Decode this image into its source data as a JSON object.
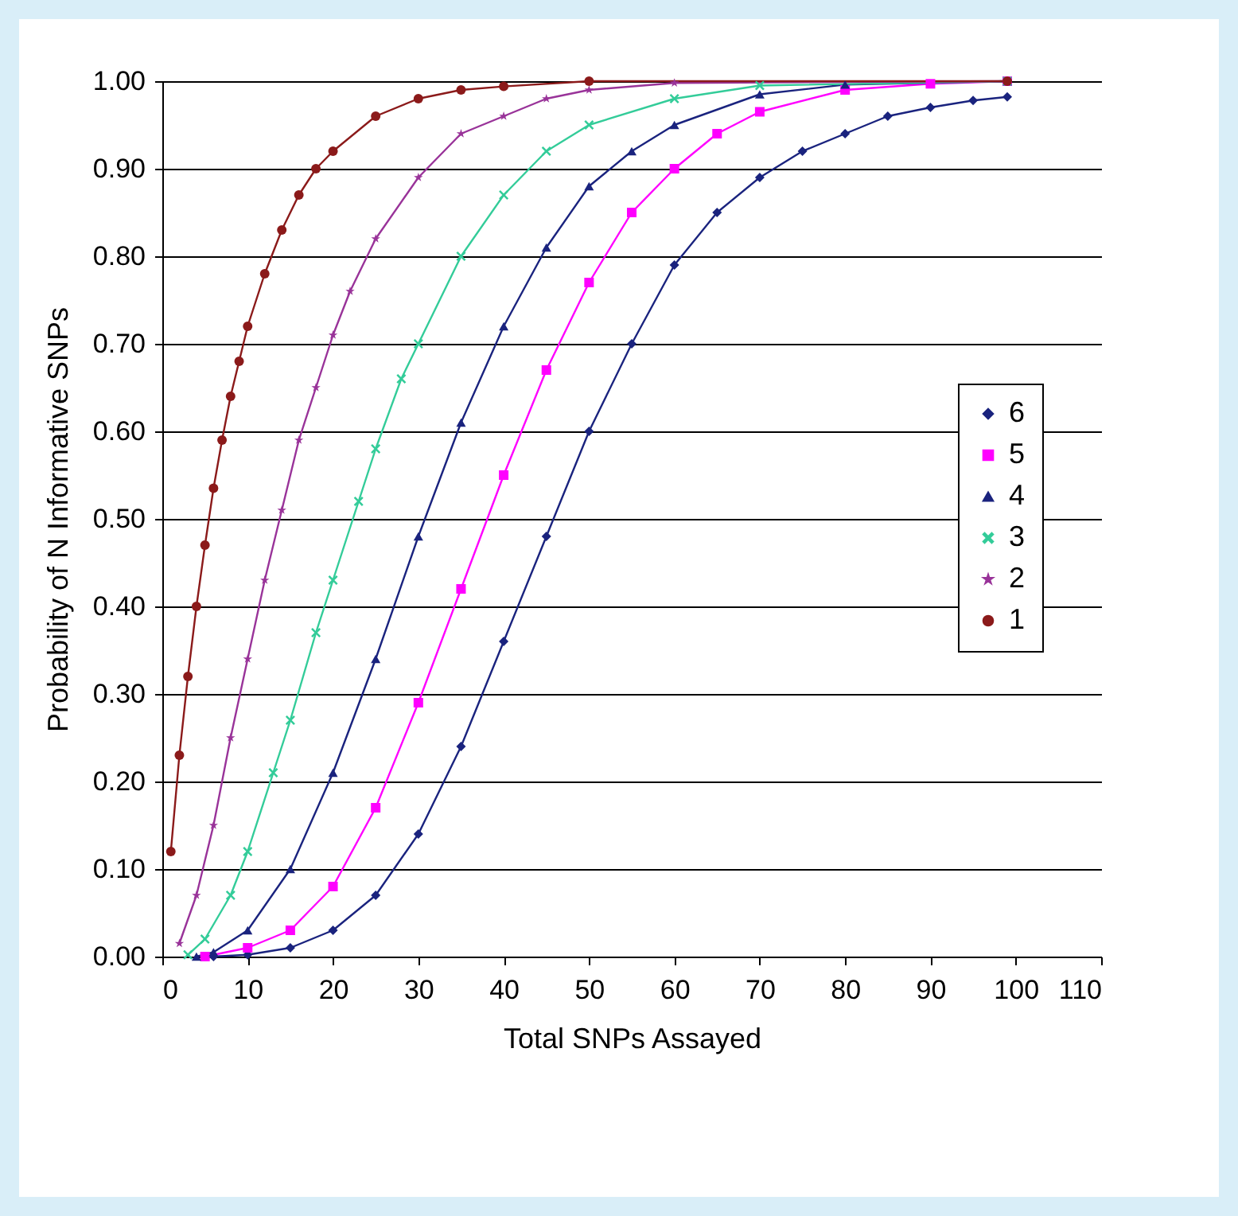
{
  "chart_data": {
    "type": "line",
    "xlabel": "Total SNPs Assayed",
    "ylabel": "Probability of N Informative SNPs",
    "xlim": [
      0,
      110
    ],
    "xticks": [
      0,
      10,
      20,
      30,
      40,
      50,
      60,
      70,
      80,
      90,
      100,
      110
    ],
    "ylim": [
      0,
      1
    ],
    "yticks": [
      {
        "value": 0,
        "label": "0.00"
      },
      {
        "value": 0.1,
        "label": "0.10"
      },
      {
        "value": 0.2,
        "label": "0.20"
      },
      {
        "value": 0.3,
        "label": "0.30"
      },
      {
        "value": 0.4,
        "label": "0.40"
      },
      {
        "value": 0.5,
        "label": "0.50"
      },
      {
        "value": 0.6,
        "label": "0.60"
      },
      {
        "value": 0.7,
        "label": "0.70"
      },
      {
        "value": 0.8,
        "label": "0.80"
      },
      {
        "value": 0.9,
        "label": "0.90"
      },
      {
        "value": 1,
        "label": "1.00"
      }
    ],
    "grid": "y",
    "legend": "right",
    "series": [
      {
        "name": "6",
        "color": "#1a237e",
        "marker": "diamond",
        "x": [
          6,
          10,
          15,
          20,
          25,
          30,
          35,
          40,
          45,
          50,
          55,
          60,
          65,
          70,
          75,
          80,
          85,
          90,
          95,
          99
        ],
        "values": [
          0,
          0.002,
          0.01,
          0.03,
          0.07,
          0.14,
          0.24,
          0.36,
          0.48,
          0.6,
          0.7,
          0.79,
          0.85,
          0.89,
          0.92,
          0.94,
          0.96,
          0.97,
          0.978,
          0.982
        ]
      },
      {
        "name": "5",
        "color": "#ff00ff",
        "marker": "square",
        "x": [
          5,
          10,
          15,
          20,
          25,
          30,
          35,
          40,
          45,
          50,
          55,
          60,
          65,
          70,
          80,
          90,
          99
        ],
        "values": [
          0,
          0.01,
          0.03,
          0.08,
          0.17,
          0.29,
          0.42,
          0.55,
          0.67,
          0.77,
          0.85,
          0.9,
          0.94,
          0.965,
          0.99,
          0.997,
          1
        ]
      },
      {
        "name": "4",
        "color": "#1a237e",
        "marker": "triangle",
        "x": [
          4,
          6,
          10,
          15,
          20,
          25,
          30,
          35,
          40,
          45,
          50,
          55,
          60,
          70,
          80,
          99
        ],
        "values": [
          0,
          0.005,
          0.03,
          0.1,
          0.21,
          0.34,
          0.48,
          0.61,
          0.72,
          0.81,
          0.88,
          0.92,
          0.95,
          0.985,
          0.996,
          1
        ]
      },
      {
        "name": "3",
        "color": "#33cc99",
        "marker": "cross",
        "x": [
          3,
          5,
          8,
          10,
          13,
          15,
          18,
          20,
          23,
          25,
          28,
          30,
          35,
          40,
          45,
          50,
          60,
          70,
          99
        ],
        "values": [
          0.002,
          0.02,
          0.07,
          0.12,
          0.21,
          0.27,
          0.37,
          0.43,
          0.52,
          0.58,
          0.66,
          0.7,
          0.8,
          0.87,
          0.92,
          0.95,
          0.98,
          0.995,
          1
        ]
      },
      {
        "name": "2",
        "color": "#993399",
        "marker": "star",
        "x": [
          2,
          4,
          6,
          8,
          10,
          12,
          14,
          16,
          18,
          20,
          22,
          25,
          30,
          35,
          40,
          45,
          50,
          60,
          99
        ],
        "values": [
          0.015,
          0.07,
          0.15,
          0.25,
          0.34,
          0.43,
          0.51,
          0.59,
          0.65,
          0.71,
          0.76,
          0.82,
          0.89,
          0.94,
          0.96,
          0.98,
          0.99,
          0.998,
          1
        ]
      },
      {
        "name": "1",
        "color": "#8b1a1a",
        "marker": "circle",
        "x": [
          1,
          2,
          3,
          4,
          5,
          6,
          7,
          8,
          9,
          10,
          12,
          14,
          16,
          18,
          20,
          25,
          30,
          35,
          40,
          50,
          99
        ],
        "values": [
          0.12,
          0.23,
          0.32,
          0.4,
          0.47,
          0.535,
          0.59,
          0.64,
          0.68,
          0.72,
          0.78,
          0.83,
          0.87,
          0.9,
          0.92,
          0.96,
          0.98,
          0.99,
          0.994,
          1,
          1
        ]
      }
    ]
  }
}
